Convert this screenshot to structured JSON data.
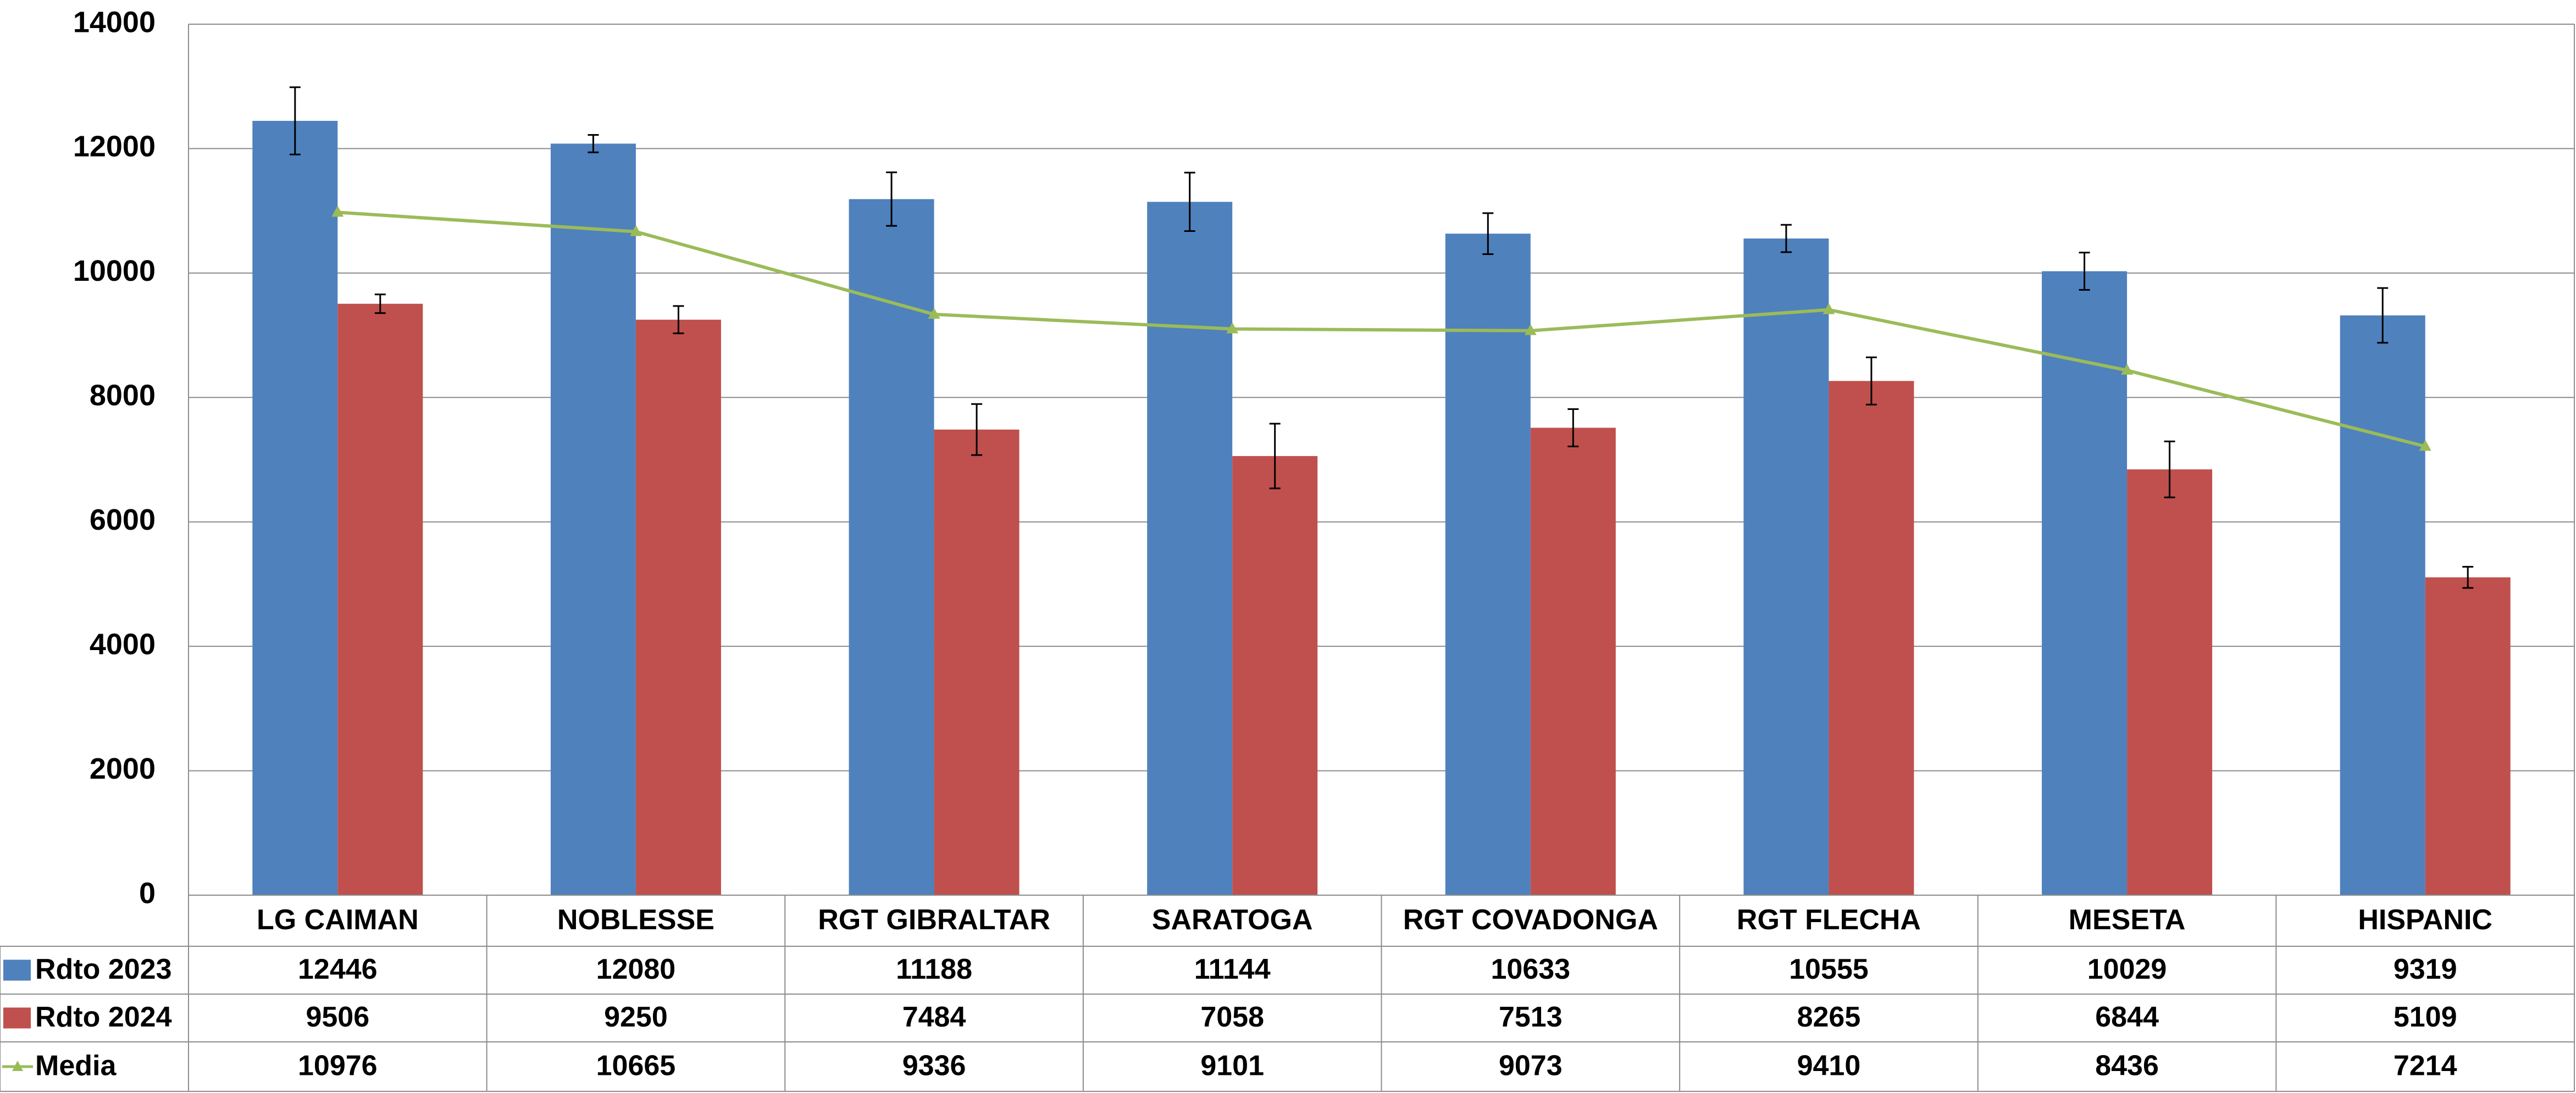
{
  "chart_data": {
    "type": "bar",
    "title": "",
    "xlabel": "",
    "ylabel": "",
    "ylim": [
      0,
      14000
    ],
    "yticks": [
      0,
      2000,
      4000,
      6000,
      8000,
      10000,
      12000,
      14000
    ],
    "grid": true,
    "legend": "data-table",
    "categories": [
      "LG CAIMAN",
      "NOBLESSE",
      "RGT GIBRALTAR",
      "SARATOGA",
      "RGT COVADONGA",
      "RGT FLECHA",
      "MESETA",
      "HISPANIC"
    ],
    "series": [
      {
        "name": "Rdto 2023",
        "kind": "bar",
        "color": "#4F81BD",
        "values": [
          12446,
          12080,
          11188,
          11144,
          10633,
          10555,
          10029,
          9319
        ],
        "error": [
          540,
          140,
          430,
          470,
          330,
          220,
          300,
          440
        ]
      },
      {
        "name": "Rdto 2024",
        "kind": "bar",
        "color": "#C0504D",
        "values": [
          9506,
          9250,
          7484,
          7058,
          7513,
          8265,
          6844,
          5109
        ],
        "error": [
          150,
          220,
          410,
          520,
          300,
          380,
          450,
          170
        ]
      },
      {
        "name": "Media",
        "kind": "line",
        "color": "#9BBB59",
        "values": [
          10976,
          10665,
          9336,
          9101,
          9073,
          9410,
          8436,
          7214
        ]
      }
    ]
  }
}
